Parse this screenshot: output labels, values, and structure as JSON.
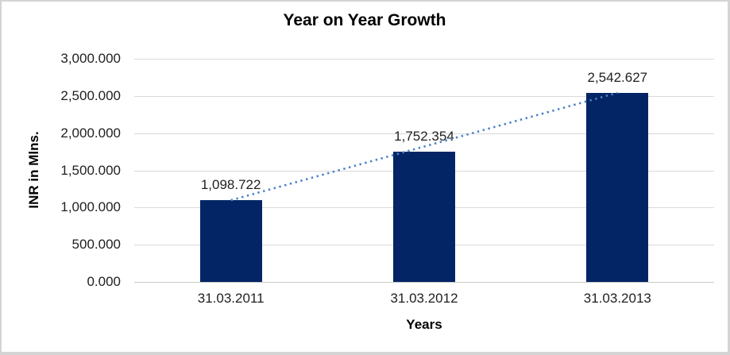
{
  "chart_data": {
    "type": "bar",
    "title": "Year on Year Growth",
    "xlabel": "Years",
    "ylabel": "INR in Mlns.",
    "categories": [
      "31.03.2011",
      "31.03.2012",
      "31.03.2013"
    ],
    "values": [
      1098.722,
      1752.354,
      2542.627
    ],
    "data_labels": [
      "1,098.722",
      "1,752.354",
      "2,542.627"
    ],
    "ylim": [
      0,
      3000
    ],
    "ytick_step": 500,
    "yticks": [
      {
        "value": 0,
        "label": "0.000"
      },
      {
        "value": 500,
        "label": "500.000"
      },
      {
        "value": 1000,
        "label": "1,000.000"
      },
      {
        "value": 1500,
        "label": "1,500.000"
      },
      {
        "value": 2000,
        "label": "2,000.000"
      },
      {
        "value": 2500,
        "label": "2,500.000"
      },
      {
        "value": 3000,
        "label": "3,000.000"
      }
    ],
    "grid": true,
    "legend": false,
    "bar_color": "#032565",
    "gridline_color": "#d9d9d9",
    "axisline_color": "#c9c9c9",
    "trendline": {
      "type": "linear",
      "style": "dotted",
      "color": "#4a82c8"
    }
  }
}
